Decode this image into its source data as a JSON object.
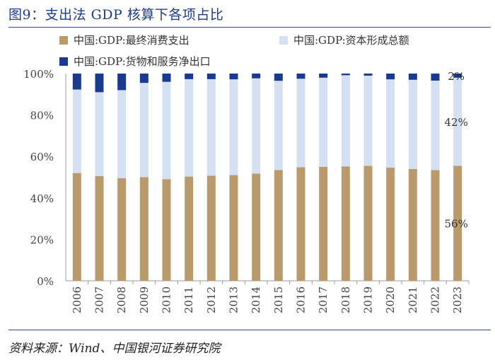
{
  "title": "图9：支出法 GDP 核算下各项占比",
  "source": "资料来源：Wind、中国银河证券研究院",
  "colors": {
    "consumption": "#b99a6b",
    "capital": "#d6e0f3",
    "net_exports": "#1a3a8f",
    "axis": "#999999",
    "title": "#1f3a8a"
  },
  "chart_data": {
    "type": "bar",
    "stacked": true,
    "normalized_percent": true,
    "title": "支出法 GDP 核算下各项占比",
    "xlabel": "",
    "ylabel": "",
    "ylim": [
      0,
      100
    ],
    "yticks": [
      "0%",
      "20%",
      "40%",
      "60%",
      "80%",
      "100%"
    ],
    "ytick_values": [
      0,
      20,
      40,
      60,
      80,
      100
    ],
    "categories": [
      "2006",
      "2007",
      "2008",
      "2009",
      "2010",
      "2011",
      "2012",
      "2013",
      "2014",
      "2015",
      "2016",
      "2017",
      "2018",
      "2019",
      "2020",
      "2021",
      "2022",
      "2023"
    ],
    "legend_position": "top",
    "series": [
      {
        "name": "中国:GDP:最终消费支出",
        "color_key": "consumption",
        "values": [
          52.0,
          50.5,
          49.5,
          50.0,
          49.0,
          50.3,
          50.7,
          51.0,
          51.7,
          53.5,
          54.8,
          55.0,
          55.2,
          55.5,
          54.6,
          54.0,
          53.4,
          55.5
        ]
      },
      {
        "name": "中国:GDP:资本形成总额",
        "color_key": "capital",
        "values": [
          40.3,
          40.5,
          42.5,
          45.5,
          47.0,
          47.0,
          46.6,
          46.2,
          46.0,
          43.0,
          42.7,
          43.0,
          44.0,
          43.5,
          42.6,
          43.0,
          43.2,
          42.5
        ]
      },
      {
        "name": "中国:GDP:货物和服务净出口",
        "color_key": "net_exports",
        "values": [
          7.7,
          9.0,
          8.0,
          4.5,
          4.0,
          2.7,
          2.7,
          2.8,
          2.3,
          3.5,
          2.5,
          2.0,
          0.8,
          1.0,
          2.8,
          3.0,
          3.4,
          2.0
        ]
      }
    ],
    "annotations": [
      {
        "category": "2023",
        "series": 0,
        "text": "56%"
      },
      {
        "category": "2023",
        "series": 1,
        "text": "42%"
      },
      {
        "category": "2023",
        "series": 2,
        "text": "2%"
      }
    ]
  }
}
